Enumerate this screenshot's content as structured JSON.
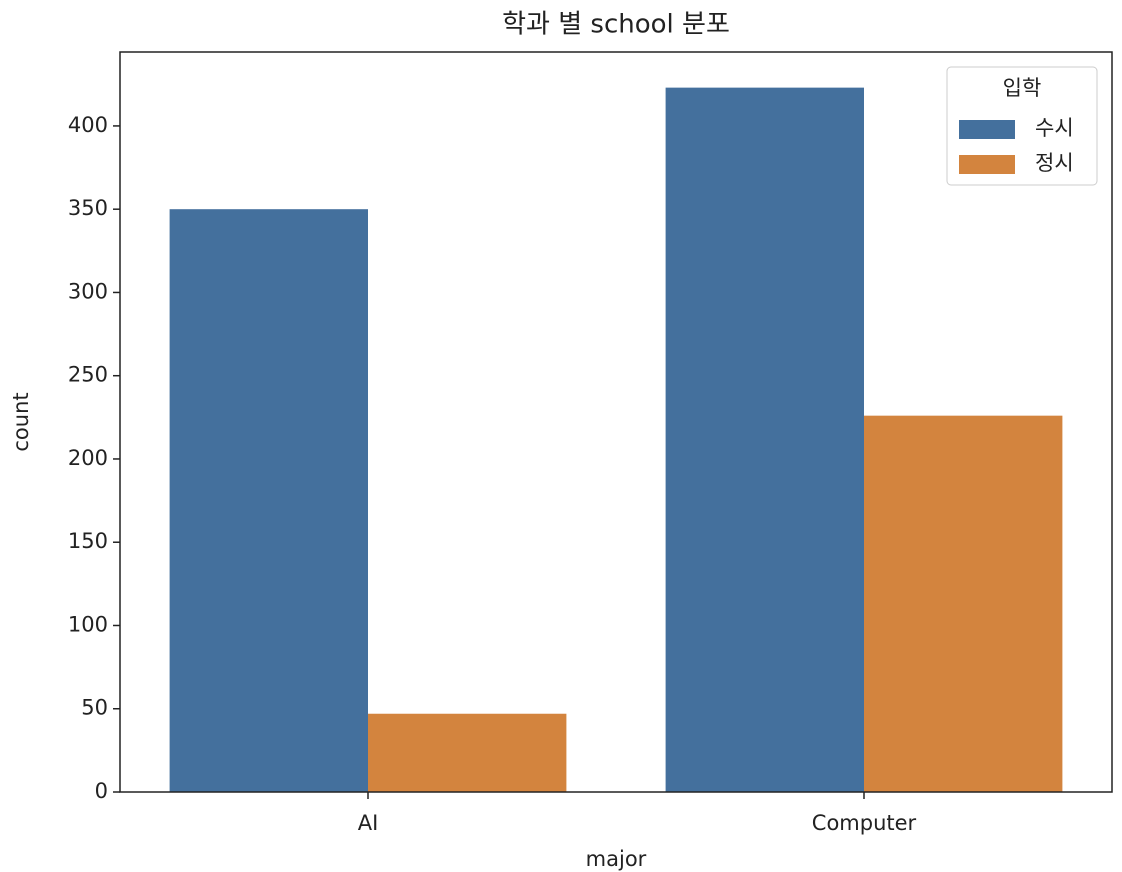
{
  "chart_data": {
    "type": "bar",
    "title": "학과 별 school 분포",
    "xlabel": "major",
    "ylabel": "count",
    "categories": [
      "AI",
      "Computer"
    ],
    "series": [
      {
        "name": "수시",
        "color": "#44709d",
        "values": [
          350,
          423
        ]
      },
      {
        "name": "정시",
        "color": "#d3843e",
        "values": [
          47,
          226
        ]
      }
    ],
    "legend_title": "입학",
    "legend": "upper right",
    "ylim": [
      0,
      444.4
    ],
    "yticks": [
      0,
      50,
      100,
      150,
      200,
      250,
      300,
      350,
      400
    ],
    "grid": false
  }
}
